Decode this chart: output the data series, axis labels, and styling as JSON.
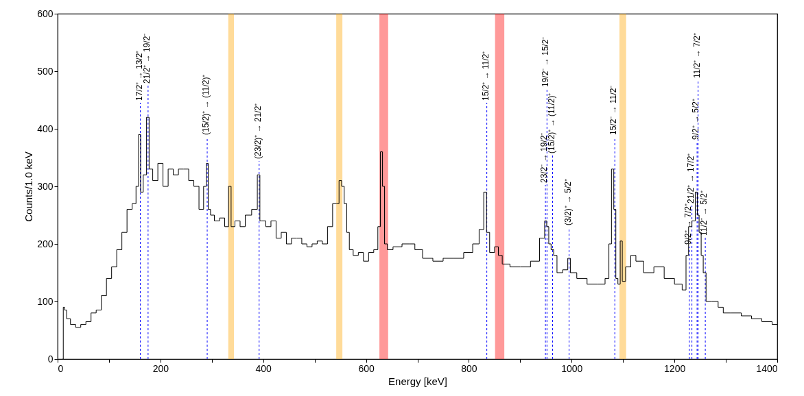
{
  "chart_data": {
    "type": "step",
    "xlabel": "Energy [keV]",
    "ylabel": "Counts/1.0 keV",
    "xlim": [
      0,
      1400
    ],
    "ylim": [
      0,
      600
    ],
    "xticks": [
      0,
      {
        "value": 100,
        "label": null
      },
      200,
      {
        "value": 300,
        "label": null
      },
      400,
      {
        "value": 500,
        "label": null
      },
      600,
      {
        "value": 700,
        "label": null
      },
      800,
      {
        "value": 900,
        "label": null
      },
      1000,
      {
        "value": 1100,
        "label": null
      },
      1200,
      {
        "value": 1300,
        "label": null
      },
      1400
    ],
    "yticks": [
      0,
      100,
      200,
      300,
      400,
      500,
      600
    ],
    "series": [
      {
        "color": "#000000",
        "x": [
          10,
          12,
          15,
          20,
          30,
          40,
          50,
          60,
          70,
          80,
          90,
          100,
          110,
          120,
          130,
          140,
          150,
          155,
          160,
          163,
          170,
          176,
          180,
          190,
          200,
          210,
          220,
          230,
          240,
          250,
          260,
          270,
          280,
          288,
          291,
          295,
          300,
          310,
          320,
          330,
          335,
          340,
          350,
          360,
          370,
          385,
          392,
          395,
          400,
          410,
          420,
          430,
          440,
          450,
          460,
          470,
          480,
          490,
          500,
          510,
          520,
          530,
          540,
          545,
          550,
          555,
          560,
          565,
          570,
          580,
          590,
          600,
          610,
          620,
          626,
          630,
          634,
          638,
          645,
          660,
          680,
          690,
          700,
          720,
          740,
          760,
          780,
          800,
          815,
          825,
          833,
          836,
          845,
          855,
          860,
          870,
          890,
          910,
          930,
          945,
          950,
          953,
          958,
          962,
          968,
          975,
          990,
          995,
          1000,
          1020,
          1040,
          1060,
          1070,
          1075,
          1080,
          1084,
          1088,
          1092,
          1097,
          1100,
          1110,
          1120,
          1130,
          1150,
          1170,
          1190,
          1210,
          1220,
          1225,
          1230,
          1238,
          1243,
          1246,
          1250,
          1254,
          1258,
          1265,
          1280,
          1290,
          1300,
          1320,
          1340,
          1360,
          1380,
          1400
        ],
        "values": [
          0,
          90,
          85,
          70,
          60,
          55,
          60,
          65,
          80,
          85,
          110,
          140,
          160,
          190,
          220,
          260,
          270,
          300,
          390,
          290,
          320,
          420,
          330,
          310,
          340,
          300,
          330,
          320,
          330,
          330,
          310,
          300,
          260,
          300,
          340,
          260,
          250,
          240,
          245,
          230,
          300,
          230,
          240,
          230,
          250,
          260,
          320,
          240,
          240,
          230,
          240,
          210,
          220,
          200,
          210,
          210,
          200,
          195,
          200,
          205,
          200,
          230,
          270,
          270,
          310,
          300,
          270,
          220,
          190,
          180,
          185,
          170,
          185,
          190,
          230,
          360,
          300,
          200,
          190,
          195,
          200,
          200,
          190,
          175,
          170,
          175,
          175,
          185,
          200,
          225,
          290,
          220,
          185,
          195,
          180,
          165,
          160,
          160,
          170,
          210,
          240,
          230,
          200,
          190,
          180,
          150,
          155,
          175,
          150,
          140,
          130,
          130,
          140,
          200,
          330,
          260,
          140,
          130,
          205,
          135,
          160,
          180,
          170,
          150,
          160,
          140,
          130,
          120,
          180,
          230,
          240,
          290,
          250,
          220,
          180,
          150,
          100,
          100,
          90,
          80,
          80,
          75,
          70,
          65,
          60
        ]
      }
    ],
    "bands": [
      {
        "axis": "x",
        "from": 332,
        "to": 343,
        "color": "#ffa500"
      },
      {
        "axis": "x",
        "from": 542,
        "to": 554,
        "color": "#ffa500"
      },
      {
        "axis": "x",
        "from": 626,
        "to": 643,
        "color": "#ff0000"
      },
      {
        "axis": "x",
        "from": 851,
        "to": 869,
        "color": "#ff0000"
      },
      {
        "axis": "x",
        "from": 1093,
        "to": 1106,
        "color": "#ffa500"
      }
    ],
    "ref_lines": [
      {
        "axis": "x",
        "value": 161,
        "label": "17/2⁺ → 13/2⁺",
        "color": "#0000ff",
        "line_style": "dashed"
      },
      {
        "axis": "x",
        "value": 176,
        "label": "21/2⁺ → 19/2⁻",
        "color": "#0000ff",
        "line_style": "dashed"
      },
      {
        "axis": "x",
        "value": 291,
        "label": "(15/2)⁺ → (11/2)⁺",
        "color": "#0000ff",
        "line_style": "dashed"
      },
      {
        "axis": "x",
        "value": 392,
        "label": "(23/2)⁺ → 21/2⁺",
        "color": "#0000ff",
        "line_style": "dashed"
      },
      {
        "axis": "x",
        "value": 835,
        "label": "15/2⁺ → 11/2⁺",
        "color": "#0000ff",
        "line_style": "dashed"
      },
      {
        "axis": "x",
        "value": 949,
        "label": "23/2⁻ → 19/2⁻",
        "color": "#0000ff",
        "line_style": "dashed"
      },
      {
        "axis": "x",
        "value": 952,
        "label": "19/2⁻ → 15/2⁻",
        "color": "#0000ff",
        "line_style": "dashed"
      },
      {
        "axis": "x",
        "value": 963,
        "label": "(15/2)⁺ → (11/2)⁺",
        "color": "#0000ff",
        "line_style": "dashed"
      },
      {
        "axis": "x",
        "value": 995,
        "label": "(3/2)⁺ → 5/2⁺",
        "color": "#0000ff",
        "line_style": "dashed"
      },
      {
        "axis": "x",
        "value": 1084,
        "label": "15/2⁻ → 11/2⁻",
        "color": "#0000ff",
        "line_style": "dashed"
      },
      {
        "axis": "x",
        "value": 1229,
        "label": "9/2⁺ → 7/2⁺",
        "color": "#0000ff",
        "line_style": "dashed"
      },
      {
        "axis": "x",
        "value": 1234,
        "label": "21/2⁺ → 17/2⁺",
        "color": "#0000ff",
        "line_style": "dashed"
      },
      {
        "axis": "x",
        "value": 1244,
        "label": "9/2⁺ → 5/2⁺",
        "color": "#0000ff",
        "line_style": "dashed"
      },
      {
        "axis": "x",
        "value": 1246,
        "label": "11/2⁺ → 7/2⁺",
        "color": "#0000ff",
        "line_style": "dashed"
      },
      {
        "axis": "x",
        "value": 1260,
        "label": "11/2⁻ → 5/2⁺",
        "color": "#0000ff",
        "line_style": "dashed"
      }
    ]
  }
}
